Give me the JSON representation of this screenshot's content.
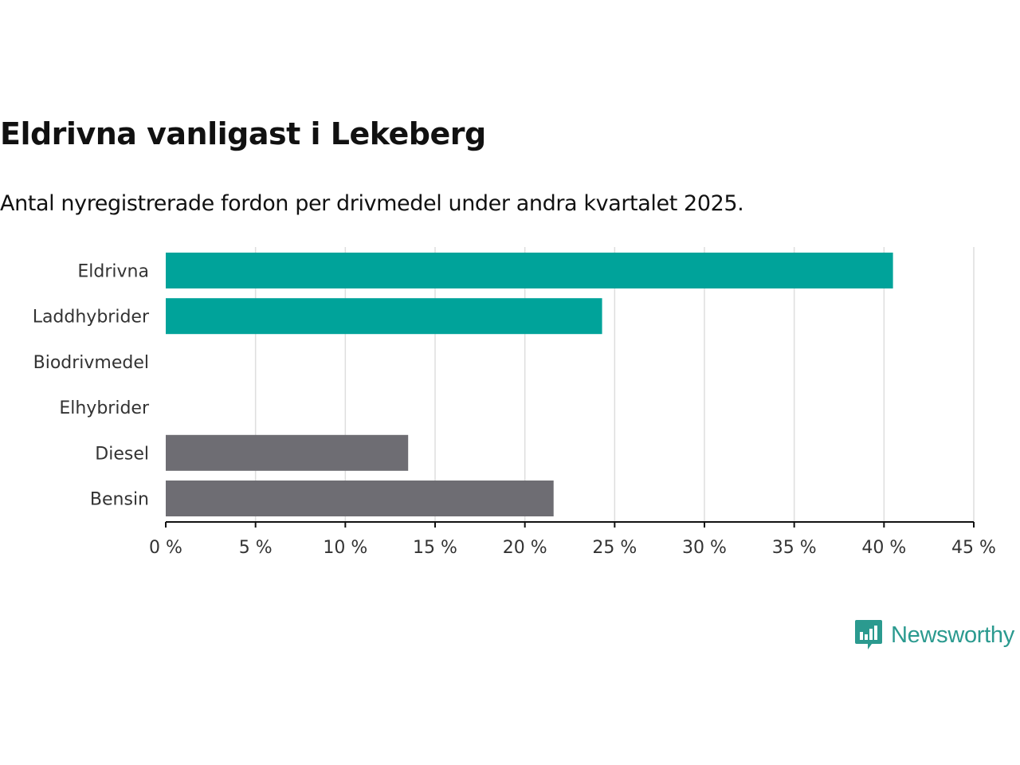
{
  "title": "Eldrivna vanligast i Lekeberg",
  "subtitle": "Antal nyregistrerade fordon per drivmedel under andra kvartalet 2025.",
  "brand": {
    "name": "Newsworthy",
    "icon": "newsworthy-chart-bubble-icon",
    "color": "#2b9a8f"
  },
  "chart_data": {
    "type": "bar",
    "orientation": "horizontal",
    "categories": [
      "Eldrivna",
      "Laddhybrider",
      "Biodrivmedel",
      "Elhybrider",
      "Diesel",
      "Bensin"
    ],
    "values": [
      40.5,
      24.3,
      0,
      0,
      13.5,
      21.6
    ],
    "colors": [
      "#00a39a",
      "#00a39a",
      "#00a39a",
      "#00a39a",
      "#6e6d73",
      "#6e6d73"
    ],
    "xlim": [
      0,
      45
    ],
    "ticks": [
      0,
      5,
      10,
      15,
      20,
      25,
      30,
      35,
      40,
      45
    ],
    "tick_labels": [
      "0 %",
      "5 %",
      "10 %",
      "15 %",
      "20 %",
      "25 %",
      "30 %",
      "35 %",
      "40 %",
      "45 %"
    ],
    "grid": true
  }
}
